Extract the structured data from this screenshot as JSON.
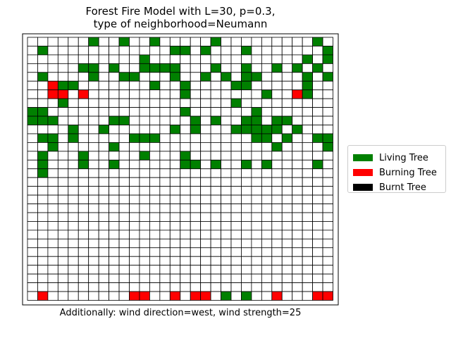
{
  "chart_data": {
    "type": "heatmap",
    "title": "Forest Fire Model with L=30, p=0.3,\ntype of neighborhood=Neumann",
    "xlabel": "Additionally: wind direction=west, wind strength=25",
    "ylabel": "",
    "grid": true,
    "legend_position": "center-right",
    "states": [
      {
        "code": 0,
        "name": "Empty",
        "color": "#ffffff"
      },
      {
        "code": 1,
        "name": "Living Tree",
        "color": "#008000"
      },
      {
        "code": 2,
        "name": "Burning Tree",
        "color": "#ff0000"
      },
      {
        "code": 3,
        "name": "Burnt Tree",
        "color": "#000000"
      }
    ],
    "legend": [
      {
        "label": "Living Tree",
        "color": "#008000"
      },
      {
        "label": "Burning Tree",
        "color": "#ff0000"
      },
      {
        "label": "Burnt Tree",
        "color": "#000000"
      }
    ],
    "rows": [
      "000000100100100000100000000010",
      "010000000000001101000100000001",
      "000000000001000000000000000101",
      "000001101001111000100100101010",
      "010000100110001001010110000101",
      "002110000000100100001100000100",
      "002202000000000100000001002100",
      "000100000000000000001000000000",
      "110000000000000100000010000000",
      "111000001100000010100110110000",
      "000010010000001010001111101000",
      "011010000011100000000011010011",
      "001000001000000000000000100001",
      "010001000001000100000000000000",
      "010001001000000110100101000010",
      "010000000000000000000000000000",
      "000000000000000000000000000000",
      "000000000000000000000000000000",
      "000000000000000000000000000000",
      "000000000000000000000000000000",
      "000000000000000000000000000000",
      "000000000000000000000000000000",
      "000000000000000000000000000000",
      "000000000000000000000000000000",
      "000000000000000000000000000000",
      "000000000000000000000000000000",
      "000000000000000000000000000000",
      "000000000000000000000000000000",
      "000000000000000000000000000000",
      "020000000022002022010100200022"
    ]
  }
}
